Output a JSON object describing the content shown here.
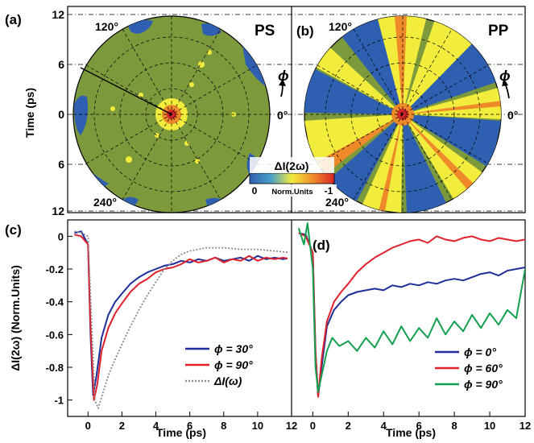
{
  "colors": {
    "green": "#7c9a3c",
    "blue": "#2f5fb0",
    "yellow": "#f2ec3c",
    "orange": "#ef8a2a",
    "red": "#d9262a",
    "line_blue": "#1f2f9a",
    "line_red": "#e0202a",
    "line_green": "#12a050",
    "line_gray": "#8a8a8a"
  },
  "top": {
    "y_label": "Time (ps)",
    "y_ticks": [
      "12",
      "6",
      "0",
      "6",
      "12"
    ],
    "panel_a": {
      "label": "(a)",
      "tag": "PS",
      "angle_120": "120°",
      "angle_240": "240°"
    },
    "panel_b": {
      "label": "(b)",
      "tag": "PP",
      "angle_120": "120°",
      "angle_240": "240°",
      "angle_0": "0°",
      "phi": "ϕ"
    },
    "between": {
      "phi": "ϕ",
      "angle_0": "0°"
    },
    "colorbar": {
      "title": "ΔI(2ω)",
      "left": "0",
      "mid": "Norm.Units",
      "right": "-1"
    }
  },
  "chart_data": [
    {
      "panel": "(c)",
      "type": "line",
      "xlabel": "Time (ps)",
      "ylabel": "ΔI(2ω) (Norm.Units)",
      "xlim": [
        -1.2,
        12
      ],
      "ylim": [
        -1.1,
        0.1
      ],
      "x_ticks": [
        0,
        2,
        4,
        6,
        8,
        10,
        12
      ],
      "y_ticks": [
        0,
        -0.2,
        -0.4,
        -0.6,
        -0.8,
        -1
      ],
      "y_tick_labels": [
        "0",
        "-0.2",
        "-0.4",
        "-0.6",
        "-0.8",
        "-1"
      ],
      "x_tick_labels": [
        "0",
        "2",
        "4",
        "6",
        "8",
        "10",
        "12"
      ],
      "legend": "bottom-right",
      "series": [
        {
          "name": "ϕ = 30°",
          "color": "#1f2f9a",
          "x": [
            -0.8,
            -0.4,
            0,
            0.15,
            0.3,
            0.5,
            0.8,
            1.2,
            1.6,
            2,
            2.5,
            3,
            3.5,
            4,
            4.5,
            5,
            5.5,
            6,
            6.5,
            7,
            7.5,
            8,
            8.5,
            9,
            9.5,
            10,
            10.5,
            11,
            11.5,
            12
          ],
          "values": [
            0.02,
            0.03,
            -0.05,
            -0.6,
            -0.97,
            -0.85,
            -0.62,
            -0.48,
            -0.4,
            -0.35,
            -0.29,
            -0.25,
            -0.22,
            -0.2,
            -0.18,
            -0.17,
            -0.15,
            -0.16,
            -0.14,
            -0.15,
            -0.13,
            -0.15,
            -0.14,
            -0.13,
            -0.15,
            -0.12,
            -0.14,
            -0.13,
            -0.14,
            -0.13
          ]
        },
        {
          "name": "ϕ = 90°",
          "color": "#e0202a",
          "x": [
            -0.8,
            -0.4,
            0,
            0.15,
            0.35,
            0.55,
            0.8,
            1.2,
            1.6,
            2,
            2.5,
            3,
            3.5,
            4,
            4.5,
            5,
            5.5,
            6,
            6.5,
            7,
            7.5,
            8,
            8.5,
            9,
            9.5,
            10,
            10.5,
            11,
            11.5,
            12
          ],
          "values": [
            0.01,
            0.0,
            -0.05,
            -0.55,
            -1.0,
            -0.9,
            -0.7,
            -0.56,
            -0.47,
            -0.41,
            -0.34,
            -0.29,
            -0.26,
            -0.22,
            -0.2,
            -0.19,
            -0.17,
            -0.14,
            -0.16,
            -0.15,
            -0.13,
            -0.16,
            -0.14,
            -0.15,
            -0.12,
            -0.15,
            -0.13,
            -0.14,
            -0.13,
            -0.14
          ]
        },
        {
          "name": "ΔI(ω)",
          "color": "#8a8a8a",
          "dashed": true,
          "x": [
            -0.8,
            -0.4,
            0,
            0.2,
            0.4,
            0.6,
            0.9,
            1.2,
            1.6,
            2,
            2.5,
            3,
            3.5,
            4,
            4.5,
            5,
            5.5,
            6,
            6.5,
            7,
            7.5,
            8,
            9,
            10,
            11,
            12
          ],
          "values": [
            0.03,
            0.02,
            0.0,
            -0.5,
            -1.0,
            -1.05,
            -0.95,
            -0.85,
            -0.75,
            -0.66,
            -0.55,
            -0.45,
            -0.36,
            -0.28,
            -0.2,
            -0.15,
            -0.11,
            -0.09,
            -0.08,
            -0.07,
            -0.07,
            -0.07,
            -0.08,
            -0.08,
            -0.09,
            -0.1
          ]
        }
      ]
    },
    {
      "panel": "(d)",
      "type": "line",
      "xlabel": "Time (ps)",
      "ylabel": "",
      "xlim": [
        -1.2,
        12
      ],
      "ylim": [
        -1.1,
        0.1
      ],
      "x_ticks": [
        0,
        2,
        4,
        6,
        8,
        10,
        12
      ],
      "x_tick_labels": [
        "0",
        "2",
        "4",
        "6",
        "8",
        "10",
        "12"
      ],
      "legend": "bottom-right",
      "series": [
        {
          "name": "ϕ = 0°",
          "color": "#1f2f9a",
          "x": [
            -0.8,
            -0.4,
            0,
            0.15,
            0.3,
            0.5,
            0.8,
            1.2,
            1.6,
            2,
            2.5,
            3,
            3.5,
            4,
            4.5,
            5,
            5.5,
            6,
            6.5,
            7,
            7.5,
            8,
            8.5,
            9,
            9.5,
            10,
            10.5,
            11,
            11.5,
            12
          ],
          "values": [
            0.02,
            0.01,
            -0.1,
            -0.7,
            -0.98,
            -0.8,
            -0.55,
            -0.45,
            -0.4,
            -0.36,
            -0.34,
            -0.33,
            -0.32,
            -0.33,
            -0.3,
            -0.31,
            -0.29,
            -0.3,
            -0.28,
            -0.29,
            -0.27,
            -0.26,
            -0.27,
            -0.25,
            -0.23,
            -0.22,
            -0.24,
            -0.21,
            -0.2,
            -0.19
          ]
        },
        {
          "name": "ϕ = 60°",
          "color": "#e0202a",
          "x": [
            -0.8,
            -0.4,
            0,
            0.15,
            0.3,
            0.5,
            0.8,
            1.2,
            1.6,
            2,
            2.5,
            3,
            3.5,
            4,
            4.5,
            5,
            5.5,
            6,
            6.5,
            7,
            7.5,
            8,
            8.5,
            9,
            9.5,
            10,
            10.5,
            11,
            11.5,
            12
          ],
          "values": [
            0.02,
            0.0,
            -0.1,
            -0.7,
            -0.98,
            -0.75,
            -0.52,
            -0.4,
            -0.34,
            -0.29,
            -0.22,
            -0.17,
            -0.13,
            -0.1,
            -0.07,
            -0.05,
            -0.03,
            -0.02,
            -0.04,
            0.0,
            -0.02,
            -0.03,
            -0.01,
            0.0,
            -0.02,
            -0.03,
            -0.01,
            -0.02,
            -0.03,
            -0.02
          ]
        },
        {
          "name": "ϕ = 90°",
          "color": "#12a050",
          "x": [
            -0.8,
            -0.5,
            -0.3,
            0,
            0.15,
            0.3,
            0.5,
            0.8,
            1.1,
            1.5,
            2,
            2.5,
            3,
            3.5,
            4,
            4.5,
            5,
            5.5,
            6,
            6.5,
            7,
            7.5,
            8,
            8.5,
            9,
            9.5,
            10,
            10.5,
            11,
            11.5,
            12
          ],
          "values": [
            0.05,
            -0.05,
            0.08,
            -0.2,
            -0.8,
            -0.95,
            -0.85,
            -0.7,
            -0.62,
            -0.67,
            -0.64,
            -0.7,
            -0.62,
            -0.68,
            -0.58,
            -0.66,
            -0.55,
            -0.64,
            -0.56,
            -0.62,
            -0.5,
            -0.6,
            -0.52,
            -0.58,
            -0.48,
            -0.56,
            -0.47,
            -0.54,
            -0.45,
            -0.5,
            -0.2
          ]
        }
      ]
    }
  ]
}
